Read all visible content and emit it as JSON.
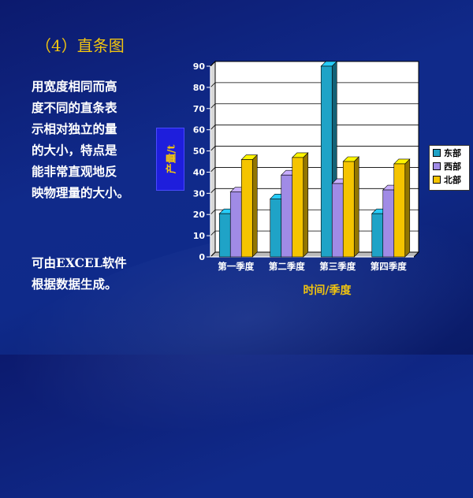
{
  "slide": {
    "title": "（4）直条图",
    "paragraph1": [
      "用宽度相同而高",
      "度不同的直条表",
      "示相对独立的量",
      "的大小，特点是",
      "能非常直观地反",
      "映物理量的大小。"
    ],
    "paragraph2": [
      "可由EXCEL软件",
      "根据数据生成。"
    ]
  },
  "chart_data": {
    "type": "bar",
    "categories": [
      "第一季度",
      "第二季度",
      "第三季度",
      "第四季度"
    ],
    "series": [
      {
        "name": "东部",
        "values": [
          20.4,
          27.4,
          90,
          20.4
        ],
        "color": "#1fa3c7"
      },
      {
        "name": "西部",
        "values": [
          30.6,
          38.6,
          34.6,
          31.6
        ],
        "color": "#a08be6"
      },
      {
        "name": "北部",
        "values": [
          45.9,
          46.9,
          45,
          43.9
        ],
        "color": "#f5c400"
      }
    ],
    "title": "",
    "xlabel": "时间/季度",
    "ylabel": "产量/t",
    "ylim": [
      0,
      90
    ],
    "yticks": [
      0,
      10,
      20,
      30,
      40,
      50,
      60,
      70,
      80,
      90
    ],
    "grid": true,
    "legend_position": "right",
    "colors": {
      "label": "#f1c40f",
      "grid": "#000000",
      "wall": "#ffffff"
    }
  }
}
